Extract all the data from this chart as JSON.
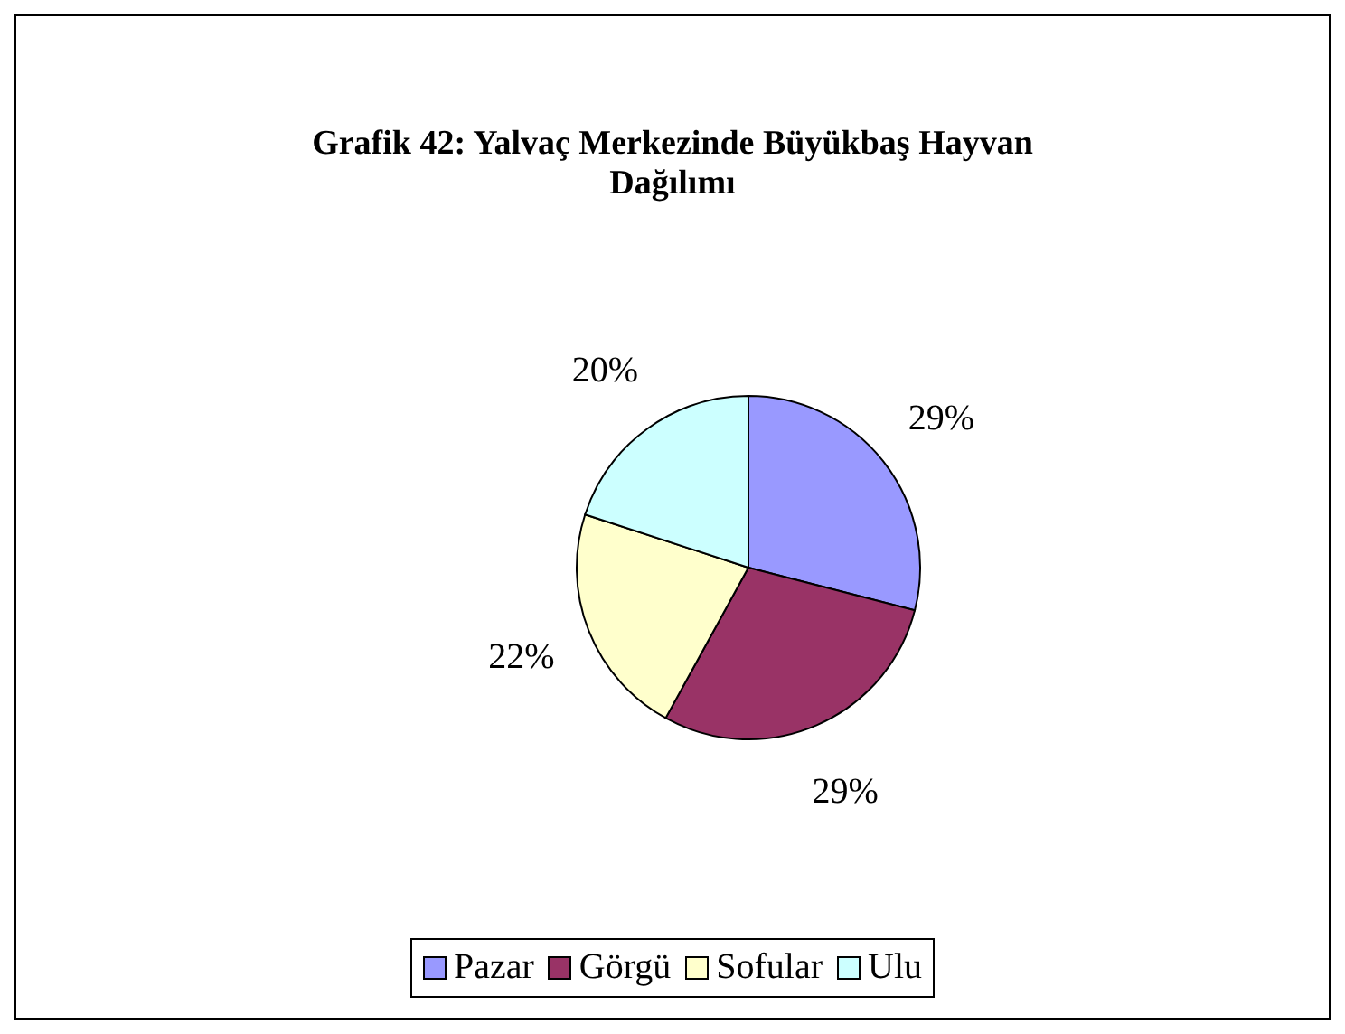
{
  "chart_data": {
    "type": "pie",
    "title": "Grafik 42: Yalvaç Merkezinde Büyükbaş Hayvan Dağılımı",
    "categories": [
      "Pazar",
      "Görgü",
      "Sofular",
      "Ulu"
    ],
    "values": [
      29,
      29,
      22,
      20
    ],
    "value_labels": [
      "29%",
      "29%",
      "22%",
      "20%"
    ],
    "colors": [
      "#9999ff",
      "#993366",
      "#ffffcc",
      "#ccffff"
    ],
    "legend": "bottom"
  }
}
